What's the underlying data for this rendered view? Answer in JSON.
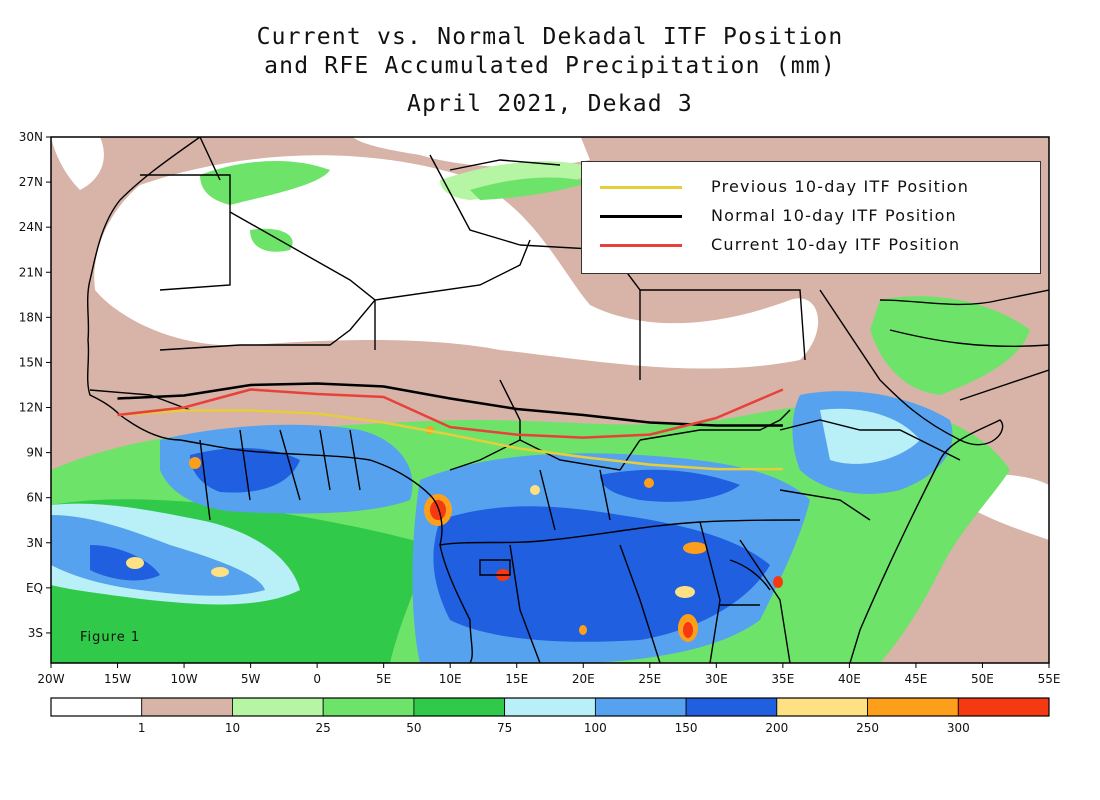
{
  "title": {
    "line1": "Current vs. Normal Dekadal ITF Position",
    "line2": "and RFE Accumulated Precipitation (mm)",
    "line3": "April 2021, Dekad 3"
  },
  "figure_label": "Figure 1",
  "map": {
    "lon_range": [
      -20,
      55
    ],
    "lat_range": [
      -5,
      30
    ],
    "lon_ticks": [
      {
        "value": -20,
        "label": "20W"
      },
      {
        "value": -15,
        "label": "15W"
      },
      {
        "value": -10,
        "label": "10W"
      },
      {
        "value": -5,
        "label": "5W"
      },
      {
        "value": 0,
        "label": "0"
      },
      {
        "value": 5,
        "label": "5E"
      },
      {
        "value": 10,
        "label": "10E"
      },
      {
        "value": 15,
        "label": "15E"
      },
      {
        "value": 20,
        "label": "20E"
      },
      {
        "value": 25,
        "label": "25E"
      },
      {
        "value": 30,
        "label": "30E"
      },
      {
        "value": 35,
        "label": "35E"
      },
      {
        "value": 40,
        "label": "40E"
      },
      {
        "value": 45,
        "label": "45E"
      },
      {
        "value": 50,
        "label": "50E"
      },
      {
        "value": 55,
        "label": "55E"
      }
    ],
    "lat_ticks": [
      {
        "value": 30,
        "label": "30N"
      },
      {
        "value": 27,
        "label": "27N"
      },
      {
        "value": 24,
        "label": "24N"
      },
      {
        "value": 21,
        "label": "21N"
      },
      {
        "value": 18,
        "label": "18N"
      },
      {
        "value": 15,
        "label": "15N"
      },
      {
        "value": 12,
        "label": "12N"
      },
      {
        "value": 9,
        "label": "9N"
      },
      {
        "value": 6,
        "label": "6N"
      },
      {
        "value": 3,
        "label": "3N"
      },
      {
        "value": 0,
        "label": "EQ"
      },
      {
        "value": -3,
        "label": "3S"
      }
    ]
  },
  "itf_legend": [
    {
      "label": "Previous 10-day ITF Position",
      "color": "#e6cd3c"
    },
    {
      "label": "Normal 10-day ITF Position",
      "color": "#000000"
    },
    {
      "label": "Current 10-day ITF Position",
      "color": "#e8413a"
    }
  ],
  "itf_lines": {
    "previous": [
      [
        -15,
        11.5
      ],
      [
        -10,
        11.8
      ],
      [
        -5,
        11.8
      ],
      [
        0,
        11.6
      ],
      [
        5,
        11.0
      ],
      [
        10,
        10.2
      ],
      [
        15,
        9.3
      ],
      [
        20,
        8.7
      ],
      [
        25,
        8.2
      ],
      [
        30,
        7.9
      ],
      [
        35,
        7.9
      ]
    ],
    "normal": [
      [
        -15,
        12.6
      ],
      [
        -10,
        12.8
      ],
      [
        -5,
        13.5
      ],
      [
        0,
        13.6
      ],
      [
        5,
        13.4
      ],
      [
        10,
        12.6
      ],
      [
        15,
        11.9
      ],
      [
        20,
        11.5
      ],
      [
        25,
        11.0
      ],
      [
        30,
        10.8
      ],
      [
        35,
        10.8
      ]
    ],
    "current": [
      [
        -15,
        11.5
      ],
      [
        -10,
        12.0
      ],
      [
        -5,
        13.2
      ],
      [
        0,
        12.9
      ],
      [
        5,
        12.7
      ],
      [
        10,
        10.7
      ],
      [
        15,
        10.2
      ],
      [
        20,
        10.0
      ],
      [
        25,
        10.2
      ],
      [
        30,
        11.3
      ],
      [
        35,
        13.2
      ]
    ]
  },
  "colorbar": {
    "colors": [
      "#ffffff",
      "#d7b3a8",
      "#b5f5a3",
      "#6ee36a",
      "#30c94a",
      "#b9eff7",
      "#56a2ef",
      "#1f5fe0",
      "#fde183",
      "#fd9f1a",
      "#f53a13"
    ],
    "labels": [
      "1",
      "10",
      "25",
      "50",
      "75",
      "100",
      "150",
      "200",
      "250",
      "300"
    ]
  }
}
